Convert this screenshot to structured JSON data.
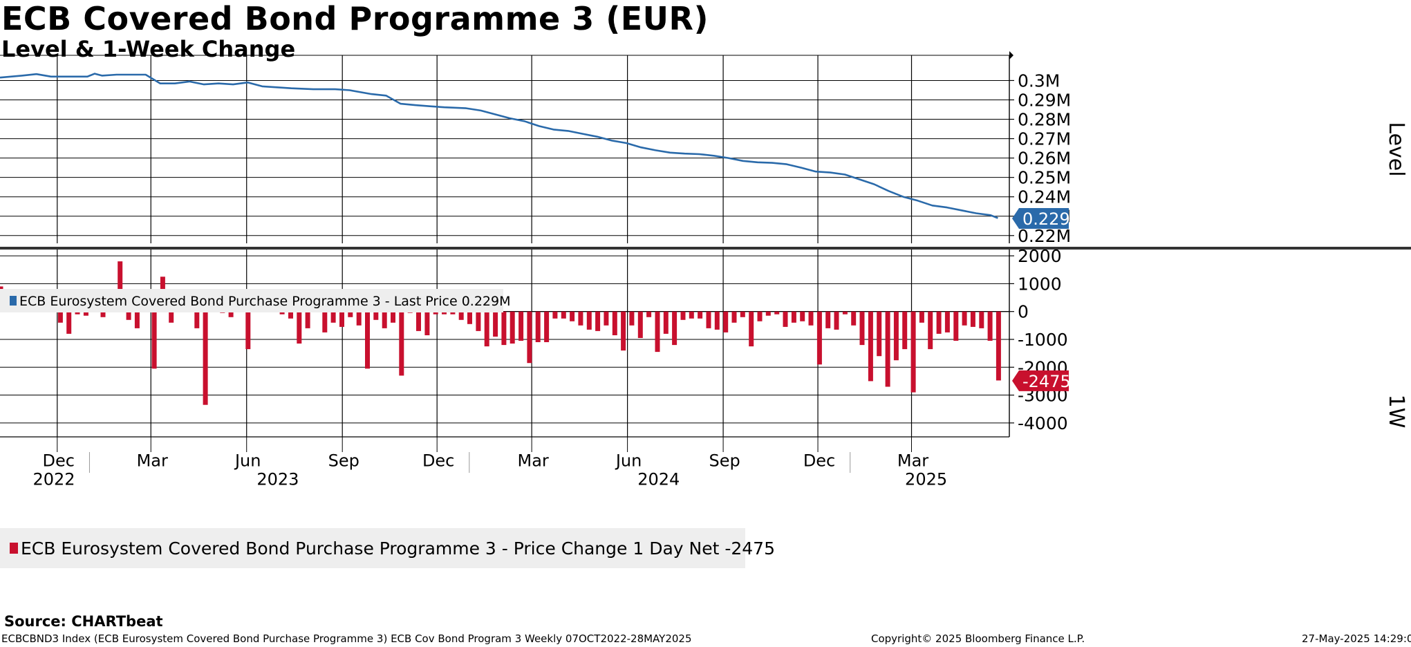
{
  "title": "ECB Covered Bond Programme 3 (EUR)",
  "subtitle": "Level & 1-Week Change",
  "source": "Source: CHARTbeat",
  "footer": {
    "left": "ECBCBND3 Index (ECB Eurosystem Covered Bond Purchase Programme 3) ECB Cov Bond Program 3  Weekly 07OCT2022-28MAY2025",
    "center": "Copyright© 2025 Bloomberg Finance L.P.",
    "right": "27-May-2025 14:29:09"
  },
  "colors": {
    "level_line": "#2a6aaa",
    "change_bar": "#c8102e",
    "grid": "#000000"
  },
  "chart_data": [
    {
      "type": "line",
      "panel": "top",
      "ylabel": "Level",
      "ylim": [
        0.216,
        0.313
      ],
      "yticks": [
        "0.3M",
        "0.29M",
        "0.28M",
        "0.27M",
        "0.26M",
        "0.25M",
        "0.24M",
        "0.23M",
        "0.22M"
      ],
      "ytick_values": [
        0.3,
        0.29,
        0.28,
        0.27,
        0.26,
        0.25,
        0.24,
        0.23,
        0.22
      ],
      "legend": "ECB Eurosystem Covered Bond Purchase Programme 3 - Last Price 0.229M",
      "last_value_label": "0.229M",
      "series": [
        {
          "name": "ECB Eurosystem Covered Bond Purchase Programme 3 - Last Price",
          "x": [
            "2022-10-07",
            "2022-10-28",
            "2022-11-11",
            "2022-11-25",
            "2022-12-09",
            "2022-12-30",
            "2023-01-06",
            "2023-01-13",
            "2023-01-27",
            "2023-02-10",
            "2023-02-24",
            "2023-03-10",
            "2023-03-24",
            "2023-04-07",
            "2023-04-21",
            "2023-05-05",
            "2023-05-19",
            "2023-06-02",
            "2023-06-16",
            "2023-06-30",
            "2023-07-14",
            "2023-08-04",
            "2023-08-25",
            "2023-09-08",
            "2023-09-29",
            "2023-10-13",
            "2023-10-27",
            "2023-11-10",
            "2023-11-24",
            "2023-12-08",
            "2023-12-29",
            "2024-01-12",
            "2024-01-26",
            "2024-02-09",
            "2024-02-23",
            "2024-03-08",
            "2024-03-22",
            "2024-04-05",
            "2024-04-19",
            "2024-05-03",
            "2024-05-17",
            "2024-05-31",
            "2024-06-14",
            "2024-06-28",
            "2024-07-12",
            "2024-07-26",
            "2024-08-09",
            "2024-08-23",
            "2024-09-06",
            "2024-09-20",
            "2024-10-04",
            "2024-10-18",
            "2024-11-01",
            "2024-11-15",
            "2024-11-29",
            "2024-12-13",
            "2024-12-27",
            "2025-01-10",
            "2025-01-24",
            "2025-02-07",
            "2025-02-21",
            "2025-03-07",
            "2025-03-21",
            "2025-04-04",
            "2025-04-18",
            "2025-05-02",
            "2025-05-16",
            "2025-05-23"
          ],
          "values": [
            0.3015,
            0.3025,
            0.3033,
            0.302,
            0.302,
            0.302,
            0.3035,
            0.3025,
            0.303,
            0.303,
            0.303,
            0.2985,
            0.2985,
            0.2995,
            0.298,
            0.2985,
            0.298,
            0.299,
            0.297,
            0.2965,
            0.296,
            0.2955,
            0.2955,
            0.295,
            0.293,
            0.2922,
            0.288,
            0.2873,
            0.2867,
            0.2862,
            0.2857,
            0.2845,
            0.2825,
            0.2805,
            0.279,
            0.2765,
            0.2747,
            0.274,
            0.2725,
            0.271,
            0.269,
            0.2677,
            0.2655,
            0.264,
            0.2628,
            0.2623,
            0.262,
            0.2612,
            0.26,
            0.2585,
            0.2578,
            0.2575,
            0.2568,
            0.255,
            0.253,
            0.2525,
            0.2515,
            0.249,
            0.2465,
            0.243,
            0.24,
            0.238,
            0.2355,
            0.2345,
            0.233,
            0.2315,
            0.2305,
            0.229
          ]
        }
      ]
    },
    {
      "type": "bar",
      "panel": "bottom",
      "ylabel": "1W",
      "ylim": [
        -4500,
        2300
      ],
      "yticks": [
        "2000",
        "1000",
        "0",
        "-1000",
        "-2000",
        "-3000",
        "-4000"
      ],
      "ytick_values": [
        2000,
        1000,
        0,
        -1000,
        -2000,
        -3000,
        -4000
      ],
      "legend": "ECB Eurosystem Covered Bond Purchase Programme 3 - Price Change 1 Day Net -2475",
      "last_value_label": "-2475",
      "series": [
        {
          "name": "ECB Eurosystem Covered Bond Purchase Programme 3 - Price Change 1 Day Net",
          "values": [
            900,
            300,
            200,
            700,
            700,
            400,
            300,
            -400,
            -800,
            -100,
            -150,
            200,
            -200,
            350,
            1800,
            -300,
            -600,
            600,
            -2050,
            1250,
            -400,
            750,
            350,
            -600,
            -3350,
            200,
            -50,
            -200,
            600,
            -1350,
            400,
            250,
            400,
            -100,
            -250,
            -1150,
            -600,
            100,
            -750,
            -400,
            -550,
            -200,
            -500,
            -2050,
            -300,
            -600,
            -400,
            -2300,
            -50,
            -700,
            -850,
            -100,
            -100,
            -100,
            -300,
            -450,
            -700,
            -1250,
            -900,
            -1200,
            -1150,
            -1050,
            -1850,
            -1100,
            -1100,
            -250,
            -250,
            -350,
            -500,
            -650,
            -700,
            -500,
            -850,
            -1400,
            -500,
            -950,
            -200,
            -1450,
            -800,
            -1200,
            -300,
            -250,
            -250,
            -600,
            -650,
            -750,
            -400,
            -200,
            -1250,
            -350,
            -150,
            -100,
            -550,
            -400,
            -350,
            -500,
            -1900,
            -600,
            -650,
            -100,
            -500,
            -1200,
            -2500,
            -1600,
            -2700,
            -1750,
            -1350,
            -2900,
            -400,
            -1350,
            -800,
            -750,
            -1050,
            -500,
            -550,
            -600,
            -1050,
            -2475
          ],
          "x_labels": [
            "Dec",
            "Mar",
            "Jun",
            "Sep",
            "Dec",
            "Mar",
            "Jun",
            "Sep",
            "Dec",
            "Mar"
          ],
          "year_labels": [
            "2022",
            "2023",
            "2024",
            "2025"
          ]
        }
      ]
    }
  ]
}
